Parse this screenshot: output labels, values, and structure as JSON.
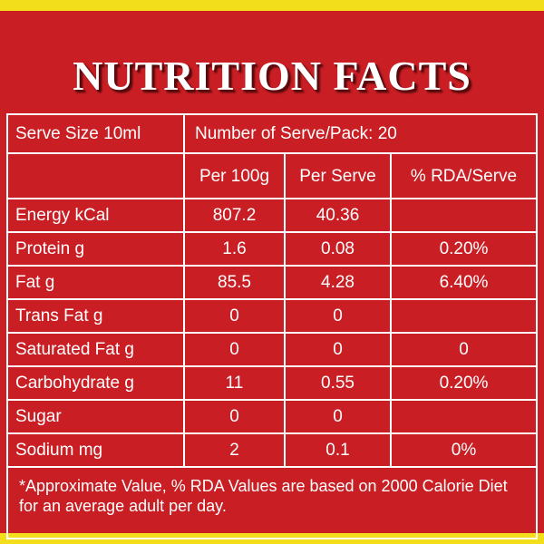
{
  "title": "NUTRITION FACTS",
  "serve_size": "Serve Size 10ml",
  "serves_per_pack": "Number of Serve/Pack: 20",
  "columns": [
    "Per 100g",
    "Per Serve",
    "% RDA/Serve"
  ],
  "rows": [
    {
      "label": "Energy kCal",
      "per100": "807.2",
      "serve": "40.36",
      "rda": ""
    },
    {
      "label": "Protein g",
      "per100": "1.6",
      "serve": "0.08",
      "rda": "0.20%"
    },
    {
      "label": "Fat g",
      "per100": "85.5",
      "serve": "4.28",
      "rda": "6.40%"
    },
    {
      "label": "Trans Fat g",
      "per100": "0",
      "serve": "0",
      "rda": ""
    },
    {
      "label": "Saturated Fat g",
      "per100": "0",
      "serve": "0",
      "rda": "0"
    },
    {
      "label": "Carbohydrate g",
      "per100": "11",
      "serve": "0.55",
      "rda": "0.20%"
    },
    {
      "label": "Sugar",
      "per100": "0",
      "serve": "0",
      "rda": ""
    },
    {
      "label": "Sodium mg",
      "per100": "2",
      "serve": "0.1",
      "rda": "0%"
    }
  ],
  "footnote": "*Approximate Value, % RDA Values are based on 2000 Calorie Diet for an average adult per day.",
  "colors": {
    "panel": "#c81e24",
    "border": "#f2de1a",
    "text": "#ffffff"
  }
}
